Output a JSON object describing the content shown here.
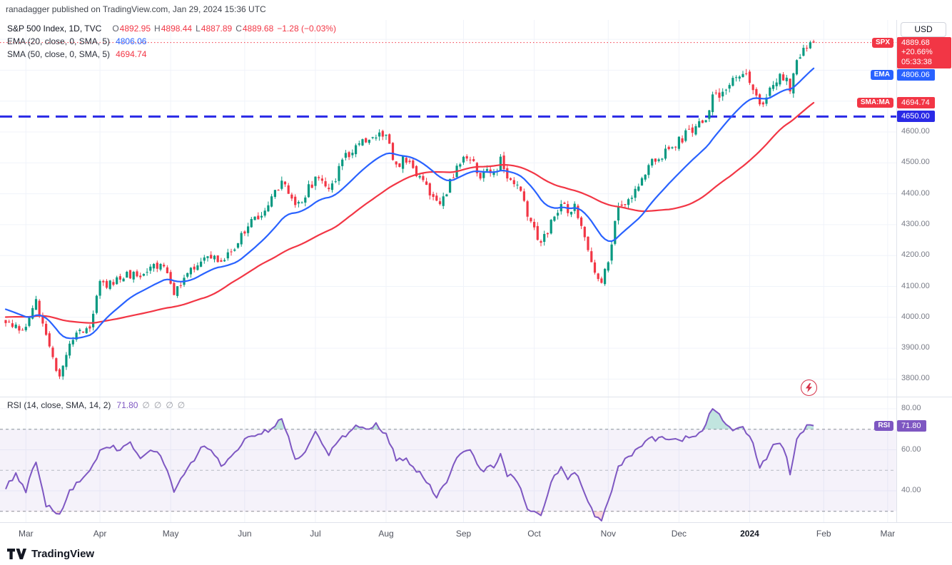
{
  "header": {
    "published_line": "ranadagger published on TradingView.com, Jan 29, 2024 15:36 UTC"
  },
  "legend": {
    "symbol": "S&P 500 Index, 1D, TVC",
    "o_label": "O",
    "o": "4892.95",
    "h_label": "H",
    "h": "4898.44",
    "l_label": "L",
    "l": "4887.89",
    "c_label": "C",
    "c": "4889.68",
    "change": "−1.28 (−0.03%)",
    "ema_label": "EMA (20, close, 0, SMA, 5)",
    "ema_value": "4806.06",
    "sma_label": "SMA (50, close, 0, SMA, 5)",
    "sma_value": "4694.74"
  },
  "rsi_legend": {
    "label": "RSI (14, close, SMA, 14, 2)",
    "value": "71.80",
    "hidden_icons": [
      "∅",
      "∅",
      "∅",
      "∅"
    ]
  },
  "right_axis": {
    "currency": "USD",
    "spx_tag": "SPX",
    "last_price": "4889.68",
    "change_pct": "+20.66%",
    "countdown": "05:33:38",
    "ema_tag": "EMA",
    "ema_value": "4806.06",
    "sma_tag": "SMA:MA",
    "sma_value": "4694.74",
    "level_value": "4650.00",
    "price_ticks": [
      "4600.00",
      "4500.00",
      "4400.00",
      "4300.00",
      "4200.00",
      "4100.00",
      "4000.00",
      "3900.00",
      "3800.00"
    ],
    "rsi_ticks": [
      "80.00",
      "60.00",
      "40.00"
    ],
    "rsi_tag": "RSI",
    "rsi_value": "71.80"
  },
  "time_axis": {
    "labels": [
      {
        "label": "Mar",
        "d": 6
      },
      {
        "label": "Apr",
        "d": 28
      },
      {
        "label": "May",
        "d": 49
      },
      {
        "label": "Jun",
        "d": 71
      },
      {
        "label": "Jul",
        "d": 92
      },
      {
        "label": "Aug",
        "d": 113
      },
      {
        "label": "Sep",
        "d": 136
      },
      {
        "label": "Oct",
        "d": 157
      },
      {
        "label": "Nov",
        "d": 179
      },
      {
        "label": "Dec",
        "d": 200
      },
      {
        "label": "2024",
        "d": 221,
        "strong": true
      },
      {
        "label": "Feb",
        "d": 243
      },
      {
        "label": "Mar",
        "d": 262
      }
    ]
  },
  "footer": {
    "brand": "TradingView"
  },
  "chart_data": {
    "type": "candlestick",
    "title": "S&P 500 Index, 1D, TVC",
    "symbol": "SPX",
    "interval": "1D",
    "exchange": "TVC",
    "currency": "USD",
    "price_ylim": [
      3743,
      4958
    ],
    "rsi_ylim": [
      25,
      84
    ],
    "rsi_levels": [
      70,
      50,
      30
    ],
    "rsi_band": [
      30,
      70
    ],
    "grid": true,
    "level_line": 4650,
    "last_candle": {
      "o": 4892.95,
      "h": 4898.44,
      "l": 4887.89,
      "c": 4889.68
    },
    "last_close": 4889.68,
    "change_abs": -1.28,
    "change_pct": -0.03,
    "ytd_change_pct": 20.66,
    "ema_period": 20,
    "ema_last": 4806.06,
    "sma_period": 50,
    "sma_last": 4694.74,
    "rsi_period": 14,
    "rsi_last": 71.8,
    "days_total": 241,
    "price_anchors": [
      [
        0,
        3990
      ],
      [
        3,
        3975
      ],
      [
        6,
        3962
      ],
      [
        9,
        4048
      ],
      [
        12,
        3935
      ],
      [
        14,
        3860
      ],
      [
        16,
        3815
      ],
      [
        19,
        3918
      ],
      [
        22,
        3948
      ],
      [
        25,
        3975
      ],
      [
        28,
        4105
      ],
      [
        32,
        4108
      ],
      [
        36,
        4142
      ],
      [
        40,
        4135
      ],
      [
        44,
        4160
      ],
      [
        47,
        4168
      ],
      [
        50,
        4085
      ],
      [
        54,
        4135
      ],
      [
        58,
        4195
      ],
      [
        62,
        4205
      ],
      [
        64,
        4180
      ],
      [
        68,
        4215
      ],
      [
        71,
        4282
      ],
      [
        76,
        4340
      ],
      [
        82,
        4440
      ],
      [
        86,
        4350
      ],
      [
        89,
        4400
      ],
      [
        92,
        4450
      ],
      [
        96,
        4405
      ],
      [
        100,
        4505
      ],
      [
        104,
        4560
      ],
      [
        108,
        4580
      ],
      [
        110,
        4588
      ],
      [
        113,
        4576
      ],
      [
        116,
        4495
      ],
      [
        119,
        4510
      ],
      [
        122,
        4465
      ],
      [
        125,
        4415
      ],
      [
        128,
        4370
      ],
      [
        131,
        4400
      ],
      [
        134,
        4498
      ],
      [
        137,
        4515
      ],
      [
        139,
        4500
      ],
      [
        141,
        4460
      ],
      [
        145,
        4470
      ],
      [
        147,
        4505
      ],
      [
        149,
        4450
      ],
      [
        151,
        4440
      ],
      [
        153,
        4400
      ],
      [
        155,
        4330
      ],
      [
        157,
        4288
      ],
      [
        159,
        4230
      ],
      [
        162,
        4310
      ],
      [
        165,
        4375
      ],
      [
        167,
        4330
      ],
      [
        169,
        4370
      ],
      [
        172,
        4250
      ],
      [
        175,
        4140
      ],
      [
        177,
        4117
      ],
      [
        179,
        4190
      ],
      [
        180,
        4240
      ],
      [
        182,
        4360
      ],
      [
        185,
        4380
      ],
      [
        188,
        4412
      ],
      [
        191,
        4498
      ],
      [
        194,
        4510
      ],
      [
        197,
        4545
      ],
      [
        200,
        4570
      ],
      [
        203,
        4600
      ],
      [
        206,
        4620
      ],
      [
        208,
        4645
      ],
      [
        210,
        4710
      ],
      [
        212,
        4725
      ],
      [
        215,
        4760
      ],
      [
        219,
        4782
      ],
      [
        221,
        4770
      ],
      [
        222,
        4743
      ],
      [
        224,
        4690
      ],
      [
        226,
        4700
      ],
      [
        228,
        4765
      ],
      [
        230,
        4780
      ],
      [
        232,
        4765
      ],
      [
        233,
        4740
      ],
      [
        235,
        4840
      ],
      [
        237,
        4868
      ],
      [
        239,
        4888
      ],
      [
        240,
        4890
      ]
    ],
    "rsi_anchors": [
      [
        0,
        42
      ],
      [
        3,
        48
      ],
      [
        6,
        40
      ],
      [
        9,
        55
      ],
      [
        12,
        33
      ],
      [
        16,
        28
      ],
      [
        19,
        40
      ],
      [
        22,
        45
      ],
      [
        25,
        50
      ],
      [
        28,
        60
      ],
      [
        31,
        62
      ],
      [
        34,
        60
      ],
      [
        37,
        64
      ],
      [
        40,
        55
      ],
      [
        43,
        60
      ],
      [
        46,
        58
      ],
      [
        50,
        40
      ],
      [
        53,
        48
      ],
      [
        56,
        55
      ],
      [
        58,
        62
      ],
      [
        61,
        60
      ],
      [
        64,
        52
      ],
      [
        68,
        58
      ],
      [
        71,
        65
      ],
      [
        75,
        68
      ],
      [
        79,
        70
      ],
      [
        82,
        76
      ],
      [
        86,
        55
      ],
      [
        89,
        60
      ],
      [
        92,
        68
      ],
      [
        96,
        58
      ],
      [
        100,
        66
      ],
      [
        104,
        72
      ],
      [
        108,
        70
      ],
      [
        110,
        72
      ],
      [
        113,
        68
      ],
      [
        116,
        55
      ],
      [
        119,
        56
      ],
      [
        122,
        50
      ],
      [
        125,
        45
      ],
      [
        128,
        37
      ],
      [
        131,
        45
      ],
      [
        134,
        57
      ],
      [
        137,
        60
      ],
      [
        139,
        58
      ],
      [
        141,
        50
      ],
      [
        145,
        52
      ],
      [
        147,
        57
      ],
      [
        149,
        48
      ],
      [
        151,
        46
      ],
      [
        153,
        40
      ],
      [
        155,
        32
      ],
      [
        157,
        30
      ],
      [
        159,
        27
      ],
      [
        162,
        45
      ],
      [
        165,
        52
      ],
      [
        167,
        45
      ],
      [
        169,
        50
      ],
      [
        172,
        38
      ],
      [
        175,
        28
      ],
      [
        177,
        25
      ],
      [
        179,
        35
      ],
      [
        182,
        52
      ],
      [
        185,
        57
      ],
      [
        188,
        60
      ],
      [
        191,
        66
      ],
      [
        194,
        65
      ],
      [
        197,
        66
      ],
      [
        200,
        65
      ],
      [
        203,
        66
      ],
      [
        206,
        68
      ],
      [
        208,
        72
      ],
      [
        210,
        81
      ],
      [
        212,
        78
      ],
      [
        214,
        72
      ],
      [
        216,
        69
      ],
      [
        219,
        71
      ],
      [
        221,
        67
      ],
      [
        222,
        63
      ],
      [
        224,
        52
      ],
      [
        226,
        56
      ],
      [
        228,
        62
      ],
      [
        230,
        63
      ],
      [
        232,
        57
      ],
      [
        233,
        48
      ],
      [
        235,
        65
      ],
      [
        237,
        70
      ],
      [
        239,
        72
      ],
      [
        240,
        71.8
      ]
    ],
    "warmup": {
      "ema_seed": 4030,
      "sma_prefill_from": 3960,
      "sma_prefill_to": 4040
    },
    "colors": {
      "grid": "#f0f3fa",
      "up": "#089981",
      "down": "#f23645",
      "ema": "#2962ff",
      "sma": "#f23645",
      "level": "#2a2ae6",
      "rsi": "#7e57c2",
      "rsi_band": "rgba(126,87,194,0.08)",
      "ob_fill": "rgba(8,153,129,0.25)",
      "os_fill": "rgba(242,54,69,0.2)",
      "dash_main": "#8c8f99",
      "dash_mid": "#b6b9c2",
      "divider": "#e0e3eb"
    }
  }
}
